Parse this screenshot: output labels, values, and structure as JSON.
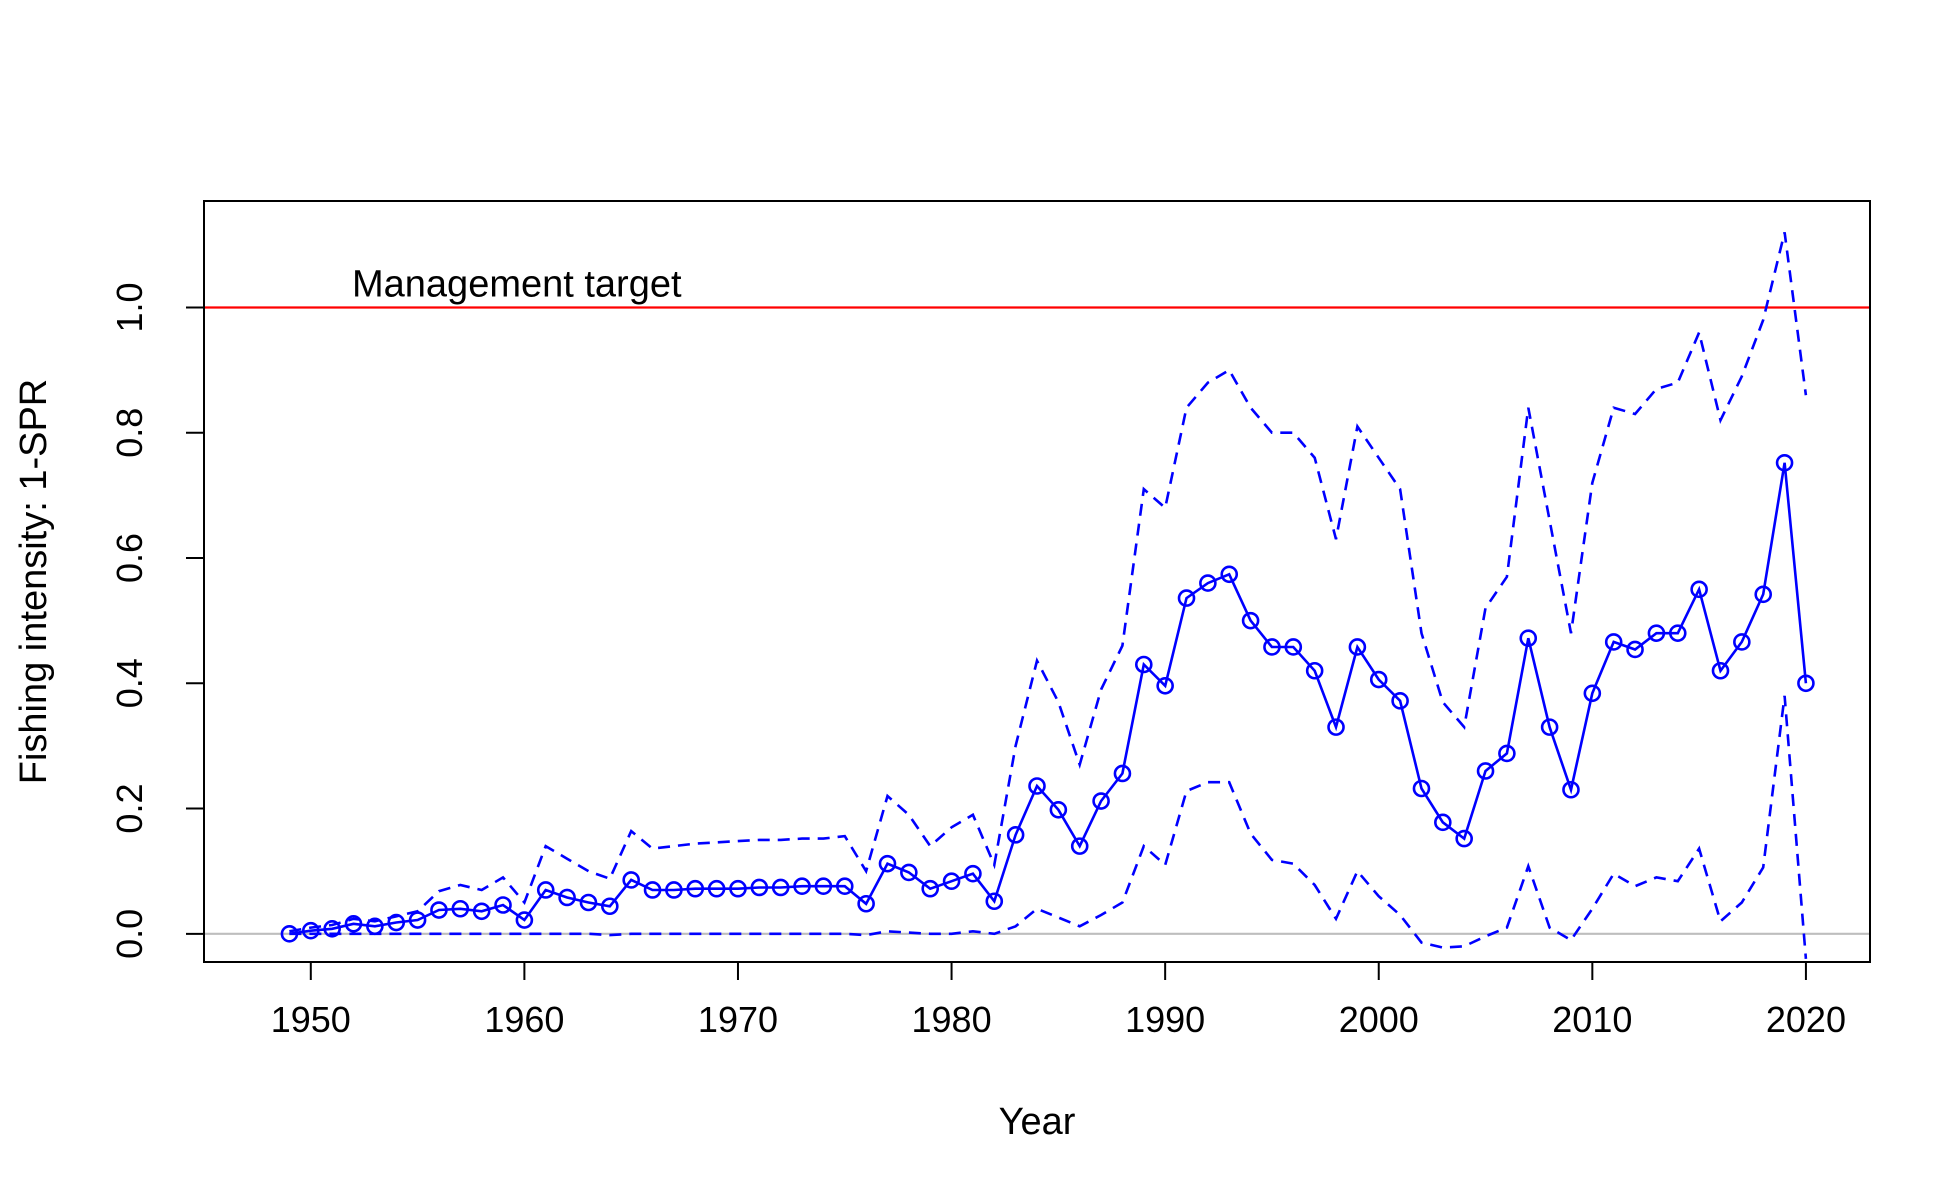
{
  "chart_data": {
    "type": "line",
    "title": "",
    "xlabel": "Year",
    "ylabel": "Fishing intensity: 1-SPR",
    "xlim": [
      1945,
      2023
    ],
    "ylim": [
      -0.045,
      1.17
    ],
    "x_ticks": [
      1950,
      1960,
      1970,
      1980,
      1990,
      2000,
      2010,
      2020
    ],
    "y_ticks": [
      0.0,
      0.2,
      0.4,
      0.6,
      0.8,
      1.0
    ],
    "x_tick_labels": [
      "1950",
      "1960",
      "1970",
      "1980",
      "1990",
      "2000",
      "2010",
      "2020"
    ],
    "y_tick_labels": [
      "0.0",
      "0.2",
      "0.4",
      "0.6",
      "0.8",
      "1.0"
    ],
    "grid": false,
    "legend": "none",
    "x": [
      1949,
      1950,
      1951,
      1952,
      1953,
      1954,
      1955,
      1956,
      1957,
      1958,
      1959,
      1960,
      1961,
      1962,
      1963,
      1964,
      1965,
      1966,
      1967,
      1968,
      1969,
      1970,
      1971,
      1972,
      1973,
      1974,
      1975,
      1976,
      1977,
      1978,
      1979,
      1980,
      1981,
      1982,
      1983,
      1984,
      1985,
      1986,
      1987,
      1988,
      1989,
      1990,
      1991,
      1992,
      1993,
      1994,
      1995,
      1996,
      1997,
      1998,
      1999,
      2000,
      2001,
      2002,
      2003,
      2004,
      2005,
      2006,
      2007,
      2008,
      2009,
      2010,
      2011,
      2012,
      2013,
      2014,
      2015,
      2016,
      2017,
      2018,
      2019,
      2020
    ],
    "series": [
      {
        "role": "estimate",
        "color": "#0000ff",
        "style": "solid-with-circles",
        "values": [
          0.0,
          0.005,
          0.008,
          0.016,
          0.012,
          0.018,
          0.022,
          0.038,
          0.04,
          0.036,
          0.046,
          0.022,
          0.07,
          0.058,
          0.05,
          0.044,
          0.086,
          0.07,
          0.07,
          0.072,
          0.072,
          0.072,
          0.074,
          0.074,
          0.076,
          0.076,
          0.076,
          0.048,
          0.112,
          0.098,
          0.072,
          0.084,
          0.096,
          0.052,
          0.158,
          0.236,
          0.198,
          0.14,
          0.212,
          0.256,
          0.43,
          0.396,
          0.536,
          0.56,
          0.574,
          0.5,
          0.458,
          0.458,
          0.42,
          0.33,
          0.458,
          0.406,
          0.372,
          0.232,
          0.178,
          0.152,
          0.26,
          0.288,
          0.472,
          0.33,
          0.23,
          0.384,
          0.466,
          0.454,
          0.48,
          0.48,
          0.55,
          0.42,
          0.466,
          0.542,
          0.752,
          0.4
        ]
      },
      {
        "role": "upper interval",
        "color": "#0000ff",
        "style": "dashed",
        "values": [
          0.004,
          0.01,
          0.014,
          0.024,
          0.02,
          0.028,
          0.036,
          0.068,
          0.078,
          0.07,
          0.09,
          0.05,
          0.14,
          0.12,
          0.1,
          0.088,
          0.164,
          0.136,
          0.14,
          0.144,
          0.146,
          0.148,
          0.15,
          0.15,
          0.152,
          0.152,
          0.156,
          0.1,
          0.22,
          0.19,
          0.14,
          0.17,
          0.19,
          0.11,
          0.3,
          0.436,
          0.37,
          0.27,
          0.39,
          0.46,
          0.71,
          0.68,
          0.84,
          0.88,
          0.9,
          0.84,
          0.8,
          0.8,
          0.76,
          0.63,
          0.81,
          0.76,
          0.71,
          0.48,
          0.37,
          0.33,
          0.52,
          0.57,
          0.84,
          0.66,
          0.48,
          0.72,
          0.84,
          0.83,
          0.87,
          0.88,
          0.96,
          0.82,
          0.89,
          0.98,
          1.12,
          0.86
        ]
      },
      {
        "role": "lower interval",
        "color": "#0000ff",
        "style": "dashed",
        "values": [
          0.0,
          0.0,
          0.0,
          0.0,
          0.0,
          0.0,
          0.0,
          0.0,
          0.0,
          0.0,
          0.0,
          0.0,
          0.0,
          0.0,
          0.0,
          -0.002,
          0.0,
          0.0,
          0.0,
          0.0,
          0.0,
          0.0,
          0.0,
          0.0,
          0.0,
          0.0,
          0.0,
          -0.002,
          0.004,
          0.002,
          0.0,
          0.0,
          0.004,
          0.0,
          0.012,
          0.04,
          0.026,
          0.012,
          0.03,
          0.05,
          0.14,
          0.11,
          0.228,
          0.242,
          0.242,
          0.16,
          0.118,
          0.112,
          0.078,
          0.024,
          0.1,
          0.06,
          0.03,
          -0.014,
          -0.022,
          -0.02,
          -0.004,
          0.01,
          0.108,
          0.01,
          -0.01,
          0.04,
          0.096,
          0.076,
          0.09,
          0.084,
          0.136,
          0.02,
          0.05,
          0.106,
          0.38,
          -0.04
        ]
      }
    ],
    "reference_lines": [
      {
        "y": 1.0,
        "color": "#ff0000",
        "label": "Management target"
      },
      {
        "y": 0.0,
        "color": "#bebebe",
        "label": ""
      }
    ]
  }
}
